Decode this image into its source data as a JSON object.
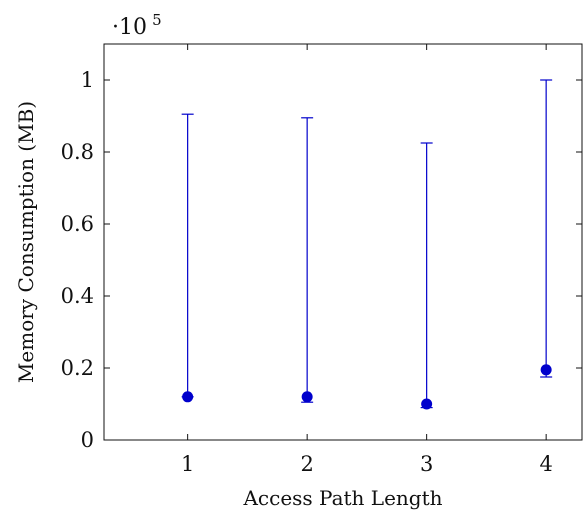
{
  "chart_data": {
    "type": "scatter",
    "xlabel": "Access Path Length",
    "ylabel": "Memory Consumption (MB)",
    "x_ticks": [
      "1",
      "2",
      "3",
      "4"
    ],
    "y_ticks": [
      "0",
      "0.2",
      "0.4",
      "0.6",
      "0.8",
      "1"
    ],
    "y_multiplier": {
      "prefix": "·10",
      "exponent": "5"
    },
    "xlim": [
      0.3,
      4.3
    ],
    "ylim": [
      0,
      110000
    ],
    "grid": false,
    "legend": "none",
    "series": [
      {
        "color": "#0000cc",
        "points": [
          {
            "x": 1,
            "y": 12000,
            "error_low": 12000,
            "error_high": 90500
          },
          {
            "x": 2,
            "y": 12000,
            "error_low": 10500,
            "error_high": 89500
          },
          {
            "x": 3,
            "y": 10000,
            "error_low": 9000,
            "error_high": 82500
          },
          {
            "x": 4,
            "y": 19500,
            "error_low": 17500,
            "error_high": 100000
          }
        ]
      }
    ]
  }
}
